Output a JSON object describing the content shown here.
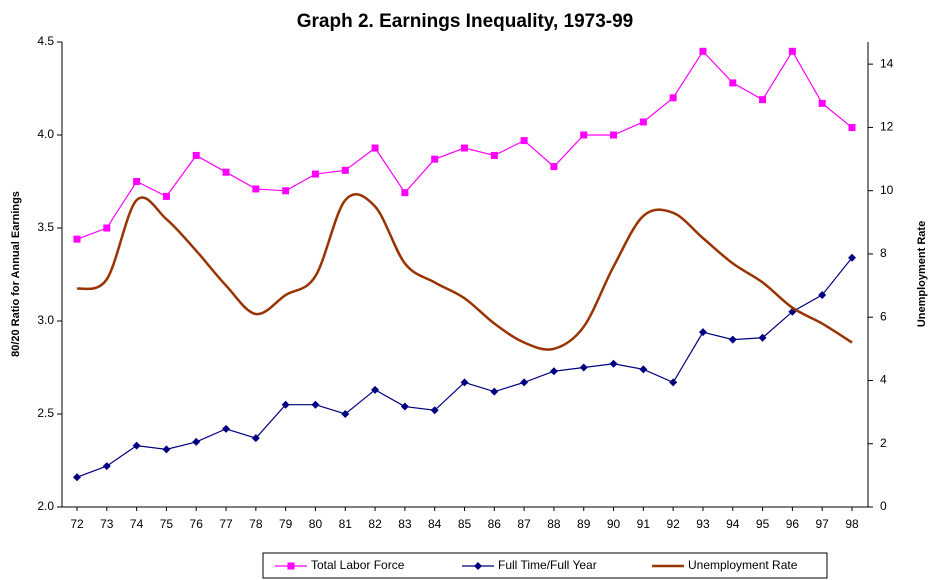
{
  "chart_data": {
    "type": "line",
    "title": "Graph 2. Earnings Inequality, 1973-99",
    "y_label": "80/20 Ratio for Annual Earnings",
    "y2_label": "Unemployment Rate",
    "categories": [
      "72",
      "73",
      "74",
      "75",
      "76",
      "77",
      "78",
      "79",
      "80",
      "81",
      "82",
      "83",
      "84",
      "85",
      "86",
      "87",
      "88",
      "89",
      "90",
      "91",
      "92",
      "93",
      "94",
      "95",
      "96",
      "97",
      "98"
    ],
    "series": [
      {
        "name": "Total Labor Force",
        "color": "#ff00ff",
        "marker": "square",
        "values": [
          3.44,
          3.5,
          3.75,
          3.67,
          3.89,
          3.8,
          3.71,
          3.7,
          3.79,
          3.81,
          3.93,
          3.69,
          3.87,
          3.93,
          3.89,
          3.97,
          3.83,
          4.0,
          4.0,
          4.07,
          4.2,
          4.45,
          4.28,
          4.19,
          4.45,
          4.17,
          4.04
        ]
      },
      {
        "name": "Full Time/Full Year",
        "color": "#000080",
        "marker": "diamond",
        "values": [
          2.16,
          2.22,
          2.33,
          2.31,
          2.35,
          2.42,
          2.37,
          2.55,
          2.55,
          2.5,
          2.63,
          2.54,
          2.52,
          2.67,
          2.62,
          2.67,
          2.73,
          2.75,
          2.77,
          2.74,
          2.67,
          2.94,
          2.9,
          2.91,
          3.05,
          3.14,
          3.34
        ]
      },
      {
        "name": "Unemployment Rate",
        "color": "#993300",
        "axis": "y2",
        "smooth": true,
        "values": [
          6.9,
          7.2,
          9.7,
          9.1,
          8.1,
          7.0,
          6.1,
          6.7,
          7.3,
          9.7,
          9.5,
          7.7,
          7.1,
          6.6,
          5.8,
          5.2,
          5.0,
          5.7,
          7.6,
          9.2,
          9.3,
          8.5,
          7.7,
          7.1,
          6.3,
          5.8,
          5.2
        ]
      }
    ],
    "ylim": [
      2.0,
      4.5
    ],
    "yticks": [
      {
        "value": 2,
        "label": "2.0"
      },
      2.5,
      {
        "value": 3,
        "label": "3.0"
      },
      3.5,
      {
        "value": 4,
        "label": "4.0"
      },
      4.5
    ],
    "y2lim": [
      0,
      14.7
    ],
    "y2ticks": [
      0,
      2,
      4,
      6,
      8,
      10,
      12,
      14
    ],
    "grid": false,
    "legend": "bottom"
  }
}
